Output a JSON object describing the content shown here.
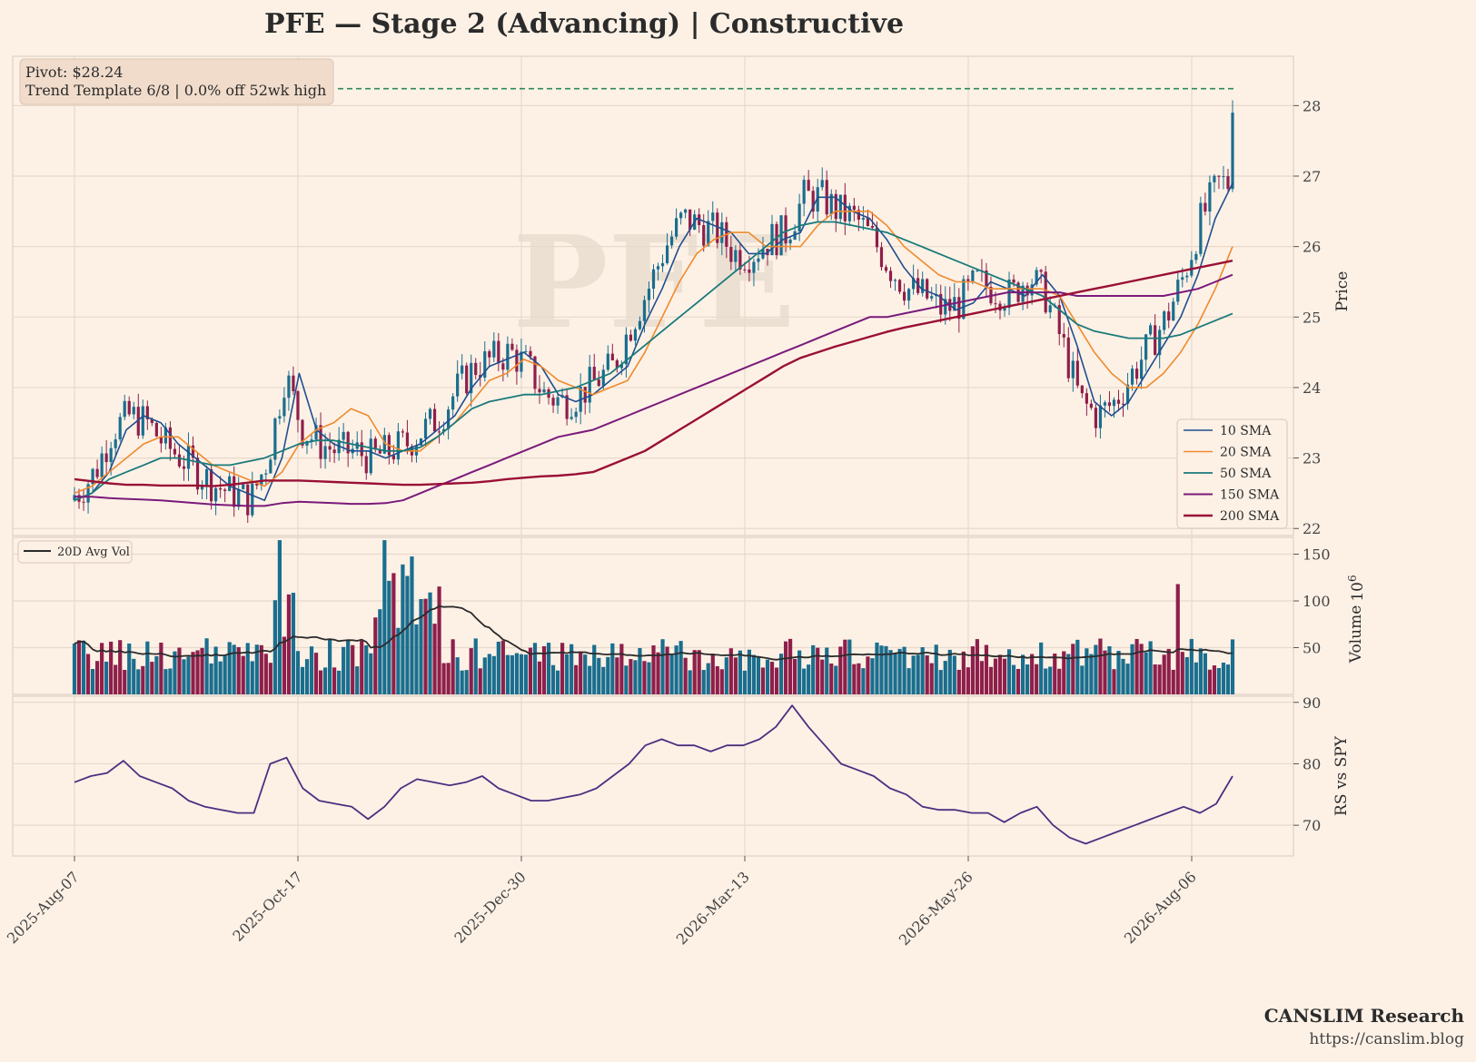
{
  "title": "PFE  —  Stage 2 (Advancing)  |  Constructive",
  "watermark": "PFE",
  "info_box": {
    "line1": "Pivot: $28.24",
    "line2": "Trend Template 6/8  |  0.0% off 52wk high"
  },
  "brand": {
    "name": "CANSLIM Research",
    "url": "https://canslim.blog"
  },
  "colors": {
    "background": "#fdf1e6",
    "up_candle": "#1a6e8e",
    "down_candle": "#8e1f4a",
    "pivot_line": "#2e8b57",
    "sma10": "#1f4f8f",
    "sma20": "#f08a2c",
    "sma50": "#1a7a7a",
    "sma150": "#7a1a7a",
    "sma200": "#9a1036",
    "avg_vol": "#2b2b2b",
    "rs_line": "#4b2f80"
  },
  "chart_data": [
    {
      "type": "candlestick",
      "panel": "price",
      "ylabel": "Price",
      "ylim": [
        21.9,
        28.7
      ],
      "yticks": [
        22,
        23,
        24,
        25,
        26,
        27,
        28
      ],
      "x_tick_labels": [
        "2025-Aug-07",
        "2025-Oct-17",
        "2025-Dec-30",
        "2026-Mar-13",
        "2026-May-26",
        "2026-Aug-06"
      ],
      "pivot": 28.24,
      "legend_position": "lower-right",
      "series": [
        {
          "name": "10 SMA",
          "values": [
            22.4,
            22.5,
            22.8,
            23.4,
            23.6,
            23.5,
            23.2,
            23.0,
            22.8,
            22.6,
            22.5,
            22.4,
            23.0,
            24.2,
            23.4,
            23.2,
            23.1,
            23.1,
            23.0,
            23.1,
            23.2,
            23.4,
            23.6,
            24.0,
            24.3,
            24.4,
            24.5,
            24.3,
            23.9,
            23.8,
            23.9,
            24.1,
            24.3,
            24.9,
            25.4,
            26.0,
            26.4,
            26.3,
            26.2,
            25.9,
            25.9,
            26.1,
            26.2,
            26.7,
            26.7,
            26.5,
            26.4,
            26.1,
            25.7,
            25.4,
            25.3,
            25.1,
            25.2,
            25.5,
            25.4,
            25.3,
            25.6,
            25.3,
            24.6,
            23.8,
            23.6,
            23.8,
            24.2,
            24.6,
            25.0,
            25.6,
            26.4,
            26.9
          ]
        },
        {
          "name": "20 SMA",
          "values": [
            22.5,
            22.6,
            22.8,
            23.0,
            23.2,
            23.3,
            23.3,
            23.1,
            22.9,
            22.8,
            22.7,
            22.6,
            22.8,
            23.2,
            23.4,
            23.5,
            23.7,
            23.6,
            23.2,
            23.1,
            23.1,
            23.3,
            23.5,
            23.8,
            24.1,
            24.2,
            24.4,
            24.3,
            24.1,
            24.0,
            23.9,
            24.0,
            24.1,
            24.5,
            25.0,
            25.5,
            25.9,
            26.1,
            26.2,
            26.2,
            26.0,
            26.0,
            26.0,
            26.3,
            26.5,
            26.5,
            26.5,
            26.3,
            26.0,
            25.8,
            25.6,
            25.5,
            25.5,
            25.4,
            25.4,
            25.4,
            25.4,
            25.3,
            24.9,
            24.5,
            24.2,
            24.0,
            24.0,
            24.2,
            24.5,
            24.9,
            25.4,
            26.0
          ]
        },
        {
          "name": "50 SMA",
          "values": [
            22.4,
            22.5,
            22.7,
            22.8,
            22.9,
            23.0,
            23.0,
            22.95,
            22.9,
            22.9,
            22.95,
            23.0,
            23.1,
            23.2,
            23.25,
            23.25,
            23.2,
            23.15,
            23.1,
            23.1,
            23.15,
            23.3,
            23.5,
            23.7,
            23.8,
            23.85,
            23.9,
            23.9,
            23.95,
            24.0,
            24.1,
            24.2,
            24.4,
            24.6,
            24.8,
            25.0,
            25.2,
            25.4,
            25.6,
            25.8,
            26.0,
            26.2,
            26.3,
            26.35,
            26.35,
            26.3,
            26.25,
            26.2,
            26.1,
            26.0,
            25.9,
            25.8,
            25.7,
            25.6,
            25.5,
            25.4,
            25.3,
            25.1,
            24.9,
            24.8,
            24.75,
            24.7,
            24.7,
            24.7,
            24.75,
            24.85,
            24.95,
            25.05
          ]
        },
        {
          "name": "150 SMA",
          "values": [
            22.45,
            22.45,
            22.43,
            22.42,
            22.41,
            22.4,
            22.38,
            22.36,
            22.34,
            22.33,
            22.32,
            22.32,
            22.36,
            22.38,
            22.37,
            22.36,
            22.35,
            22.35,
            22.36,
            22.4,
            22.5,
            22.6,
            22.7,
            22.8,
            22.9,
            23.0,
            23.1,
            23.2,
            23.3,
            23.35,
            23.4,
            23.5,
            23.6,
            23.7,
            23.8,
            23.9,
            24.0,
            24.1,
            24.2,
            24.3,
            24.4,
            24.5,
            24.6,
            24.7,
            24.8,
            24.9,
            25.0,
            25.0,
            25.05,
            25.1,
            25.15,
            25.2,
            25.25,
            25.3,
            25.35,
            25.35,
            25.35,
            25.35,
            25.3,
            25.3,
            25.3,
            25.3,
            25.3,
            25.3,
            25.35,
            25.4,
            25.5,
            25.6
          ]
        },
        {
          "name": "200 SMA",
          "values": [
            22.7,
            22.67,
            22.64,
            22.62,
            22.62,
            22.61,
            22.61,
            22.61,
            22.6,
            22.62,
            22.65,
            22.68,
            22.68,
            22.68,
            22.67,
            22.66,
            22.65,
            22.64,
            22.63,
            22.62,
            22.62,
            22.63,
            22.64,
            22.65,
            22.67,
            22.7,
            22.72,
            22.74,
            22.75,
            22.77,
            22.8,
            22.9,
            23.0,
            23.1,
            23.25,
            23.4,
            23.55,
            23.7,
            23.85,
            24.0,
            24.15,
            24.3,
            24.42,
            24.5,
            24.58,
            24.65,
            24.72,
            24.79,
            24.85,
            24.9,
            24.95,
            25.0,
            25.05,
            25.1,
            25.15,
            25.2,
            25.25,
            25.3,
            25.35,
            25.4,
            25.45,
            25.5,
            25.55,
            25.6,
            25.65,
            25.7,
            25.75,
            25.8
          ]
        }
      ]
    },
    {
      "type": "bar",
      "panel": "volume",
      "ylabel": "Volume",
      "ylabel_multiplier": "10^6",
      "yticks": [
        50,
        100,
        150
      ],
      "ylim": [
        0,
        168
      ],
      "legend": "20D Avg Vol",
      "legend_position": "top-left",
      "peaks": [
        {
          "x_index": 45,
          "value": 165
        },
        {
          "x_index": 68,
          "value": 165
        },
        {
          "x_index": 242,
          "value": 118
        }
      ]
    },
    {
      "type": "line",
      "panel": "rs",
      "ylabel": "RS vs SPY",
      "yticks": [
        70,
        80,
        90
      ],
      "ylim": [
        65,
        91
      ],
      "series": [
        {
          "name": "",
          "values": [
            77,
            78,
            78.5,
            80.5,
            78,
            77,
            76,
            74,
            73,
            72.5,
            72,
            72,
            80,
            81,
            76,
            74,
            73.5,
            73,
            71,
            73,
            76,
            77.5,
            77,
            76.5,
            77,
            78,
            76,
            75,
            74,
            74,
            74.5,
            75,
            76,
            78,
            80,
            83,
            84,
            83,
            83,
            82,
            83,
            83,
            84,
            86,
            89.5,
            86,
            83,
            80,
            79,
            78,
            76,
            75,
            73,
            72.5,
            72.5,
            72,
            72,
            70.5,
            72,
            73,
            70,
            68,
            67,
            68,
            69,
            70,
            71,
            72,
            73,
            72,
            73.5,
            78
          ]
        }
      ]
    }
  ]
}
